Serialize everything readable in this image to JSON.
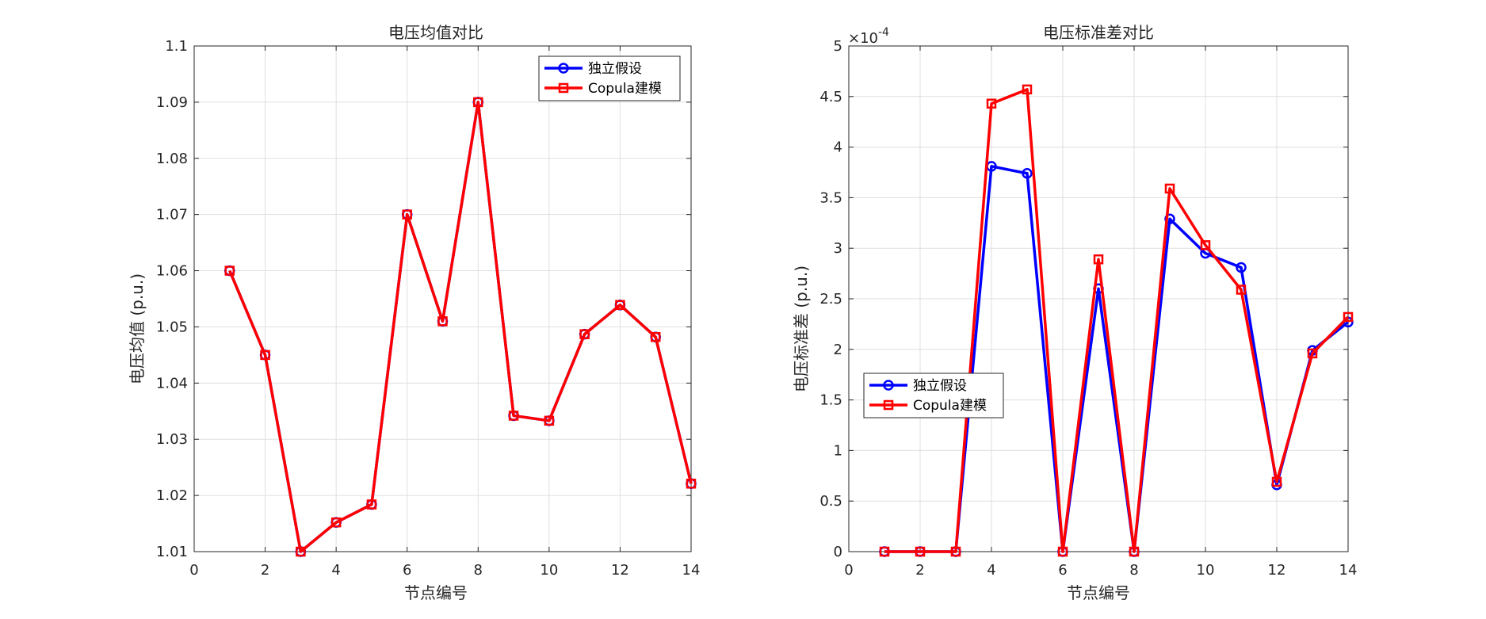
{
  "chart_data": [
    {
      "type": "line",
      "title": "电压均值对比",
      "xlabel": "节点编号",
      "ylabel": "电压均值 (p.u.)",
      "xlim": [
        0,
        14
      ],
      "ylim": [
        1.01,
        1.1
      ],
      "xticks": [
        "0",
        "2",
        "4",
        "6",
        "8",
        "10",
        "12",
        "14"
      ],
      "yticks": [
        "1.01",
        "1.02",
        "1.03",
        "1.04",
        "1.05",
        "1.06",
        "1.07",
        "1.08",
        "1.09",
        "1.1"
      ],
      "grid": true,
      "legend_position": "top-right",
      "x": [
        1,
        2,
        3,
        4,
        5,
        6,
        7,
        8,
        9,
        10,
        11,
        12,
        13,
        14
      ],
      "series": [
        {
          "name": "独立假设",
          "color": "#0000FF",
          "marker": "circle",
          "values": [
            1.06,
            1.045,
            1.01,
            1.0152,
            1.0184,
            1.07,
            1.051,
            1.09,
            1.0342,
            1.0333,
            1.0487,
            1.0539,
            1.0482,
            1.0221
          ]
        },
        {
          "name": "Copula建模",
          "color": "#FF0000",
          "marker": "square",
          "values": [
            1.06,
            1.045,
            1.01,
            1.0152,
            1.0184,
            1.07,
            1.051,
            1.09,
            1.0342,
            1.0333,
            1.0487,
            1.0539,
            1.0482,
            1.0221
          ]
        }
      ]
    },
    {
      "type": "line",
      "title": "电压标准差对比",
      "xlabel": "节点编号",
      "ylabel": "电压标准差 (p.u.)",
      "xlim": [
        0,
        14
      ],
      "ylim": [
        0,
        5
      ],
      "scale_exponent": "×10",
      "scale_power": "-4",
      "xticks": [
        "0",
        "2",
        "4",
        "6",
        "8",
        "10",
        "12",
        "14"
      ],
      "yticks": [
        "0",
        "0.5",
        "1",
        "1.5",
        "2",
        "2.5",
        "3",
        "3.5",
        "4",
        "4.5",
        "5"
      ],
      "grid": true,
      "legend_position": "middle-left",
      "x": [
        1,
        2,
        3,
        4,
        5,
        6,
        7,
        8,
        9,
        10,
        11,
        12,
        13,
        14
      ],
      "series": [
        {
          "name": "独立假设",
          "color": "#0000FF",
          "marker": "circle",
          "values": [
            0,
            0,
            0,
            3.81,
            3.74,
            0,
            2.6,
            0,
            3.29,
            2.95,
            2.81,
            0.66,
            1.99,
            2.27
          ]
        },
        {
          "name": "Copula建模",
          "color": "#FF0000",
          "marker": "square",
          "values": [
            0,
            0,
            0,
            4.43,
            4.57,
            0,
            2.89,
            0,
            3.59,
            3.03,
            2.59,
            0.69,
            1.96,
            2.32
          ]
        }
      ]
    }
  ]
}
